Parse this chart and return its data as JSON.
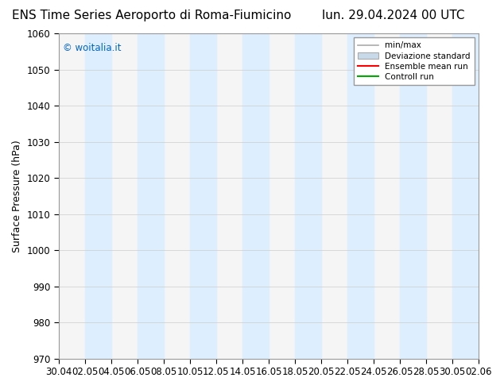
{
  "title_left": "ENS Time Series Aeroporto di Roma-Fiumicino",
  "title_right": "lun. 29.04.2024 00 UTC",
  "ylabel": "Surface Pressure (hPa)",
  "ylim": [
    970,
    1060
  ],
  "yticks": [
    970,
    980,
    990,
    1000,
    1010,
    1020,
    1030,
    1040,
    1050,
    1060
  ],
  "xtick_labels": [
    "30.04",
    "02.05",
    "04.05",
    "06.05",
    "08.05",
    "10.05",
    "12.05",
    "14.05",
    "16.05",
    "18.05",
    "20.05",
    "22.05",
    "24.05",
    "26.05",
    "28.05",
    "30.05",
    "02.06"
  ],
  "watermark": "© woitalia.it",
  "watermark_color": "#0066cc",
  "band_color": "#ddeeff",
  "background_color": "#ffffff",
  "plot_bg_color": "#f5f5f5",
  "title_fontsize": 11,
  "label_fontsize": 9,
  "tick_fontsize": 8.5,
  "legend_minmax_color": "#aaaaaa",
  "legend_std_color": "#c8daea",
  "legend_mean_color": "#ff0000",
  "legend_control_color": "#00aa00"
}
